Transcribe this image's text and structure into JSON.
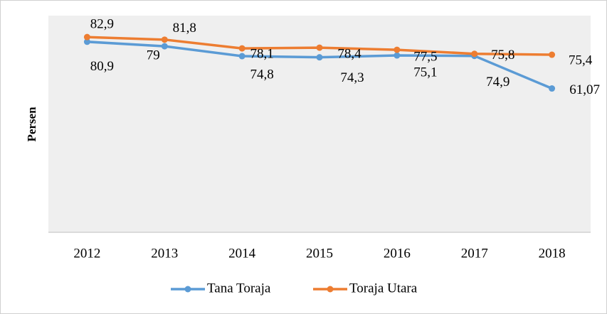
{
  "chart_data": {
    "type": "line",
    "y_label": "Persen",
    "categories": [
      "2012",
      "2013",
      "2014",
      "2015",
      "2016",
      "2017",
      "2018"
    ],
    "series": [
      {
        "name": "Tana Toraja",
        "color": "#5b9bd5",
        "values": [
          80.9,
          79,
          74.8,
          74.3,
          75.1,
          74.9,
          61.07
        ],
        "value_labels": [
          "80,9",
          "79",
          "74,8",
          "74,3",
          "75,1",
          "74,9",
          "61,07"
        ]
      },
      {
        "name": "Toraja Utara",
        "color": "#ed7d31",
        "values": [
          82.9,
          81.8,
          78.1,
          78.4,
          77.5,
          75.8,
          75.4
        ],
        "value_labels": [
          "82,9",
          "81,8",
          "78,1",
          "78,4",
          "77,5",
          "75,8",
          "75,4"
        ]
      }
    ],
    "ylim": [
      0,
      92
    ]
  }
}
